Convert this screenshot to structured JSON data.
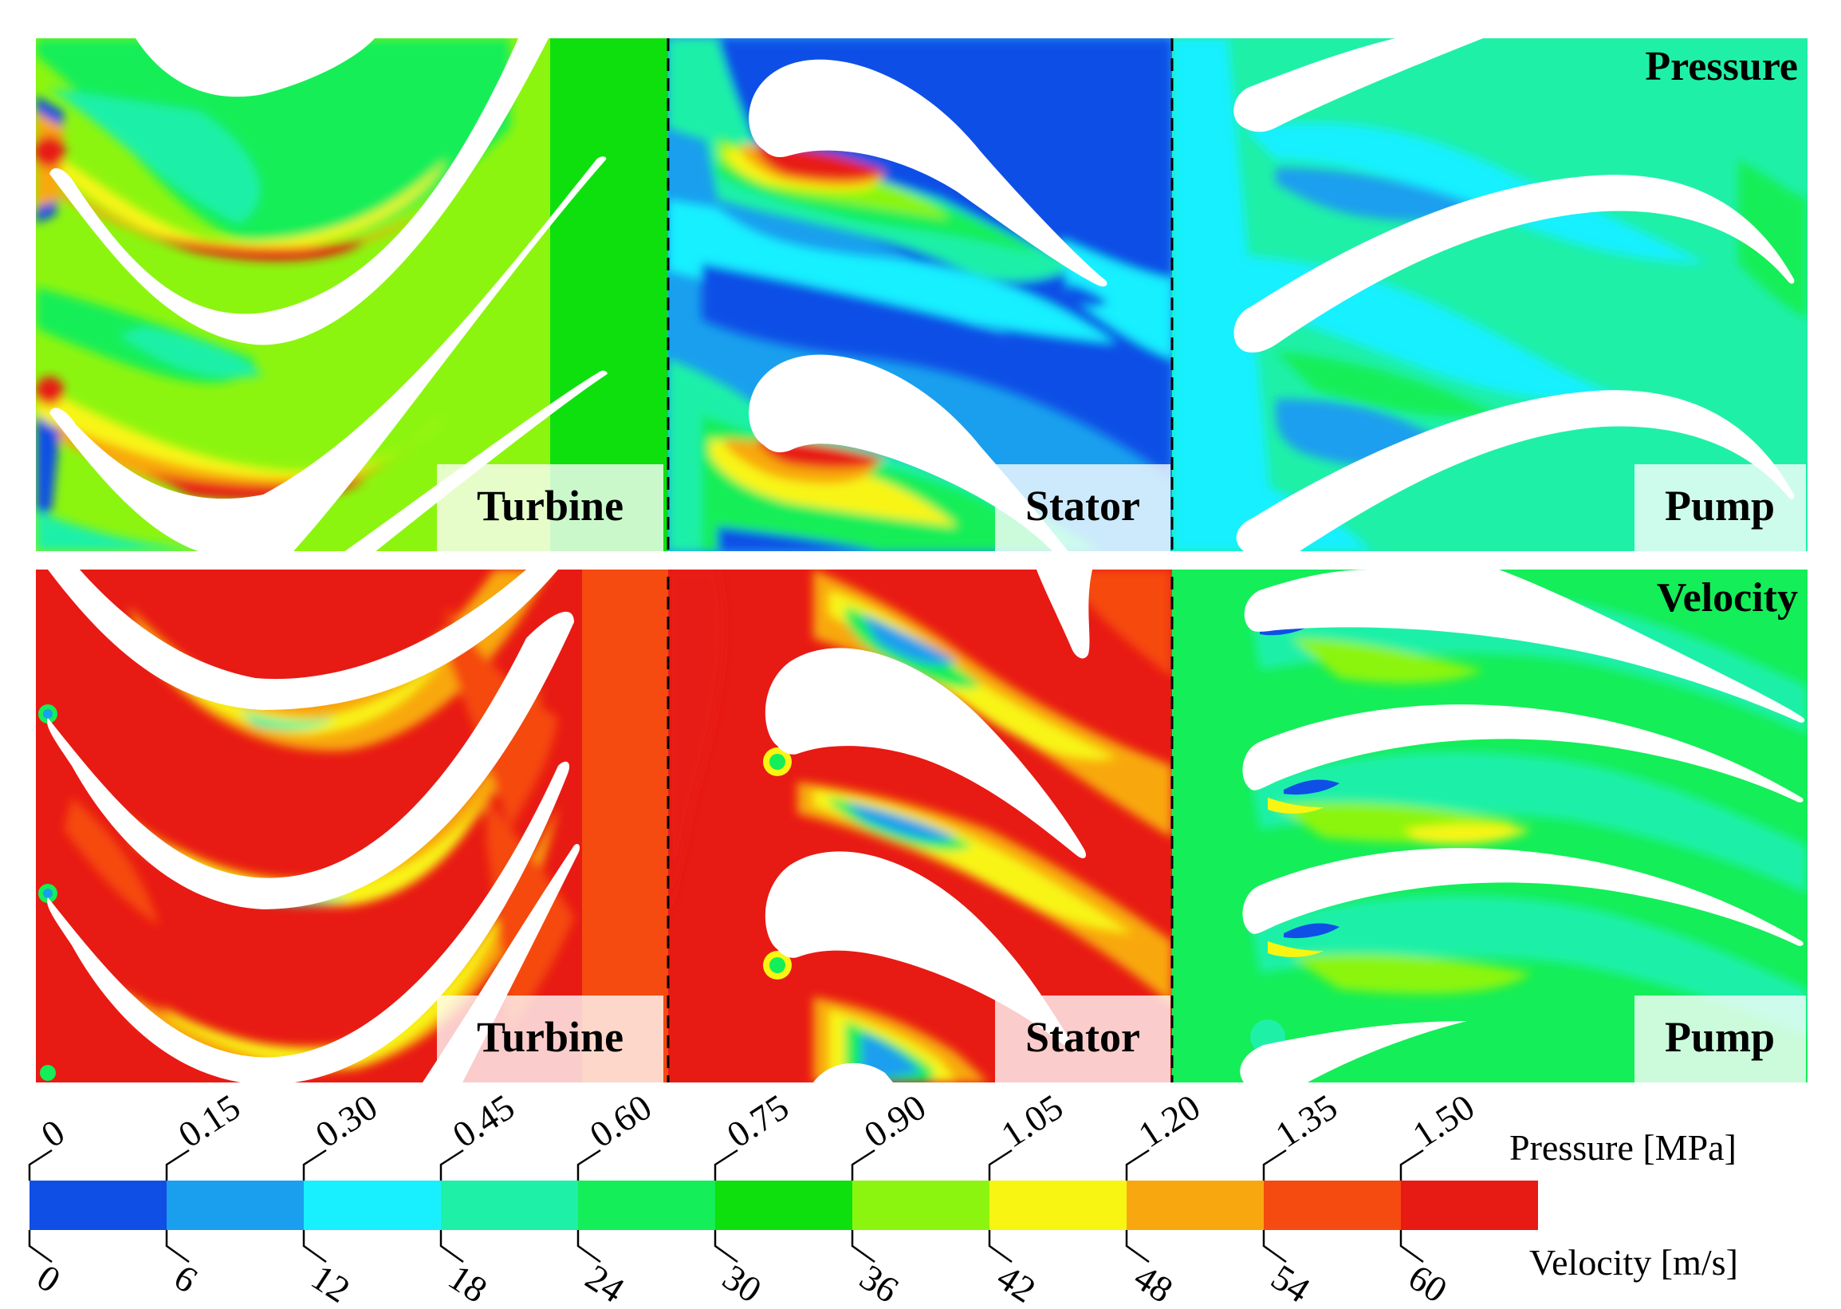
{
  "labels": {
    "pressure": "Pressure",
    "velocity": "Velocity",
    "turbine": "Turbine",
    "stator": "Stator",
    "pump": "Pump"
  },
  "colorbar": {
    "colors": [
      "#0f4fe6",
      "#1a9fee",
      "#18f0ff",
      "#1ff0a8",
      "#14ee58",
      "#0ee00e",
      "#8cf510",
      "#f8f512",
      "#f8a80e",
      "#f54a10",
      "#e81a14"
    ],
    "pressure_title": "Pressure [MPa]",
    "velocity_title": "Velocity [m/s]",
    "pressure_ticks": [
      "0",
      "0.15",
      "0.30",
      "0.45",
      "0.60",
      "0.75",
      "0.90",
      "1.05",
      "1.20",
      "1.35",
      "1.50"
    ],
    "velocity_ticks": [
      "0",
      "6",
      "12",
      "18",
      "24",
      "30",
      "36",
      "42",
      "48",
      "54",
      "60"
    ]
  },
  "field_colors": {
    "blue": "#0f4fe6",
    "light_blue": "#1a9fee",
    "cyan": "#18f0ff",
    "aqua": "#1ff0a8",
    "green": "#14ee58",
    "mid_green": "#0ee00e",
    "yellow_green": "#8cf510",
    "yellow": "#f8f512",
    "orange": "#f8a80e",
    "red_orange": "#f54a10",
    "red": "#e81a14"
  }
}
